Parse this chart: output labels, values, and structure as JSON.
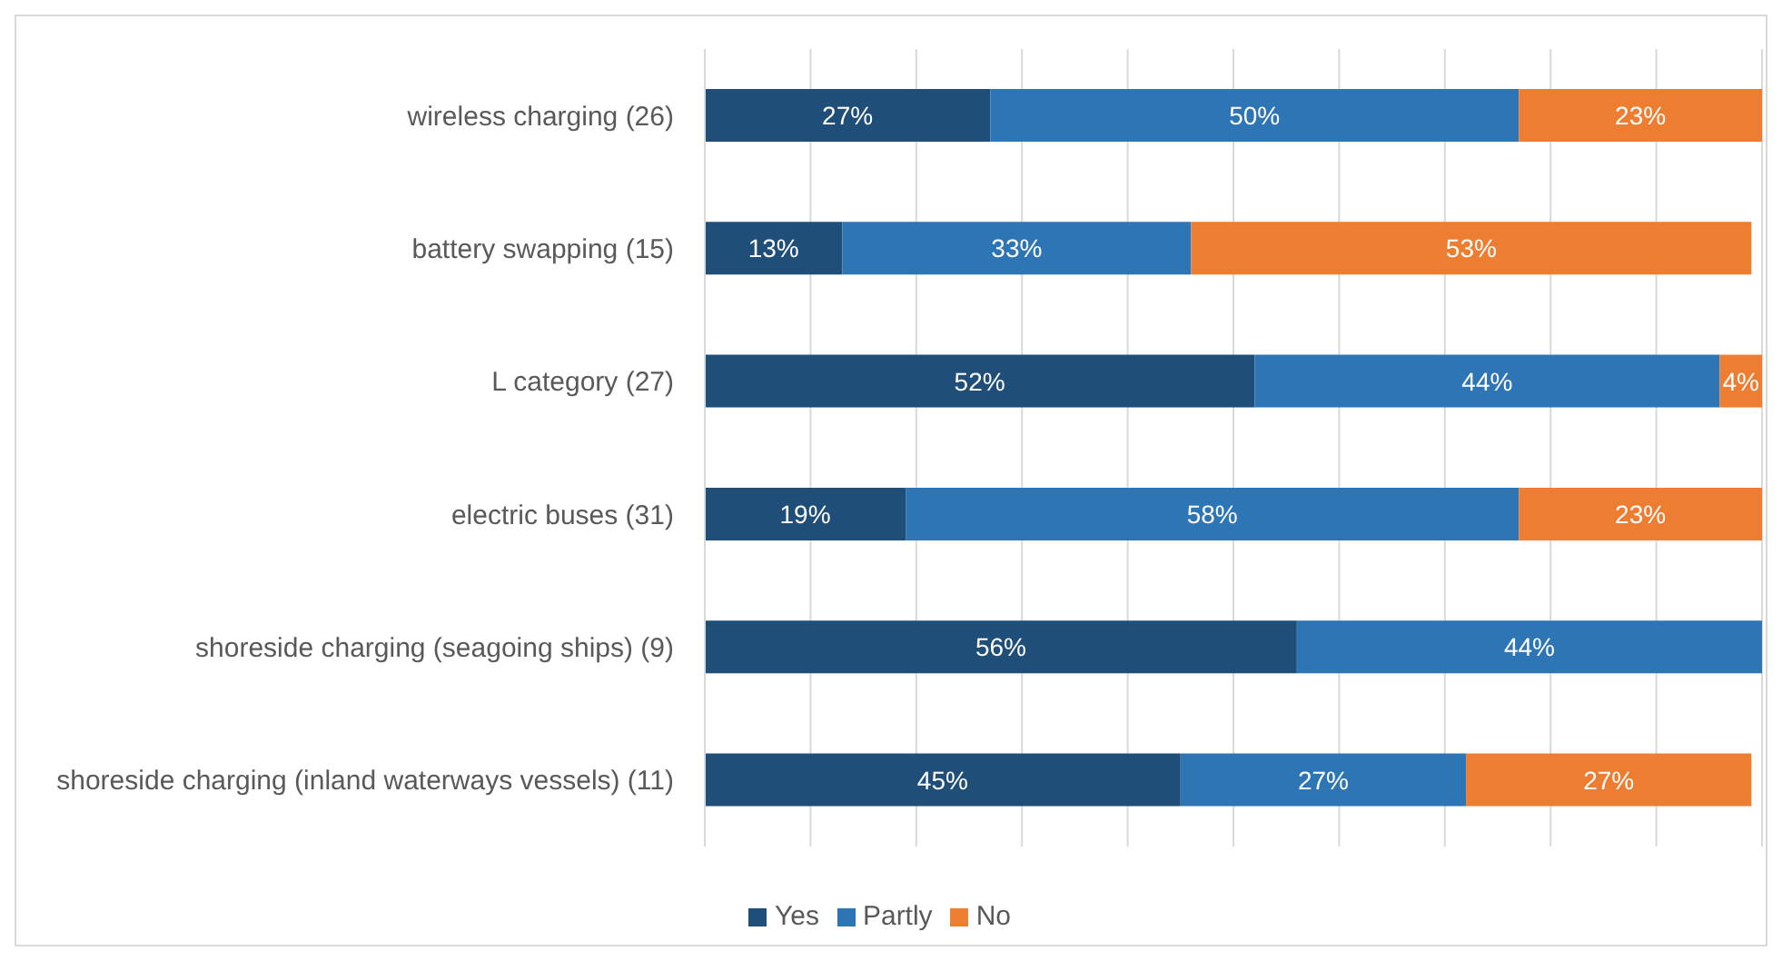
{
  "chart_data": {
    "type": "bar",
    "orientation": "horizontal",
    "stacked": true,
    "categories": [
      "wireless charging (26)",
      "battery swapping (15)",
      "L category (27)",
      "electric buses (31)",
      "shoreside charging (seagoing ships) (9)",
      "shoreside charging (inland waterways vessels) (11)"
    ],
    "series": [
      {
        "name": "Yes",
        "color": "#1f4e79",
        "values": [
          27,
          13,
          52,
          19,
          56,
          45
        ],
        "value_labels": [
          "27%",
          "13%",
          "52%",
          "19%",
          "56%",
          "45%"
        ]
      },
      {
        "name": "Partly",
        "color": "#2e75b6",
        "values": [
          50,
          33,
          44,
          58,
          44,
          27
        ],
        "value_labels": [
          "50%",
          "33%",
          "44%",
          "58%",
          "44%",
          "27%"
        ]
      },
      {
        "name": "No",
        "color": "#ed7d31",
        "values": [
          23,
          53,
          4,
          23,
          null,
          27
        ],
        "value_labels": [
          "23%",
          "53%",
          "4%",
          "23%",
          null,
          "27%"
        ]
      }
    ],
    "xlim": [
      0,
      100
    ],
    "xticks": [
      0,
      10,
      20,
      30,
      40,
      50,
      60,
      70,
      80,
      90,
      100
    ],
    "tick_labels": "y",
    "grid": "x",
    "legend": "bottom"
  }
}
